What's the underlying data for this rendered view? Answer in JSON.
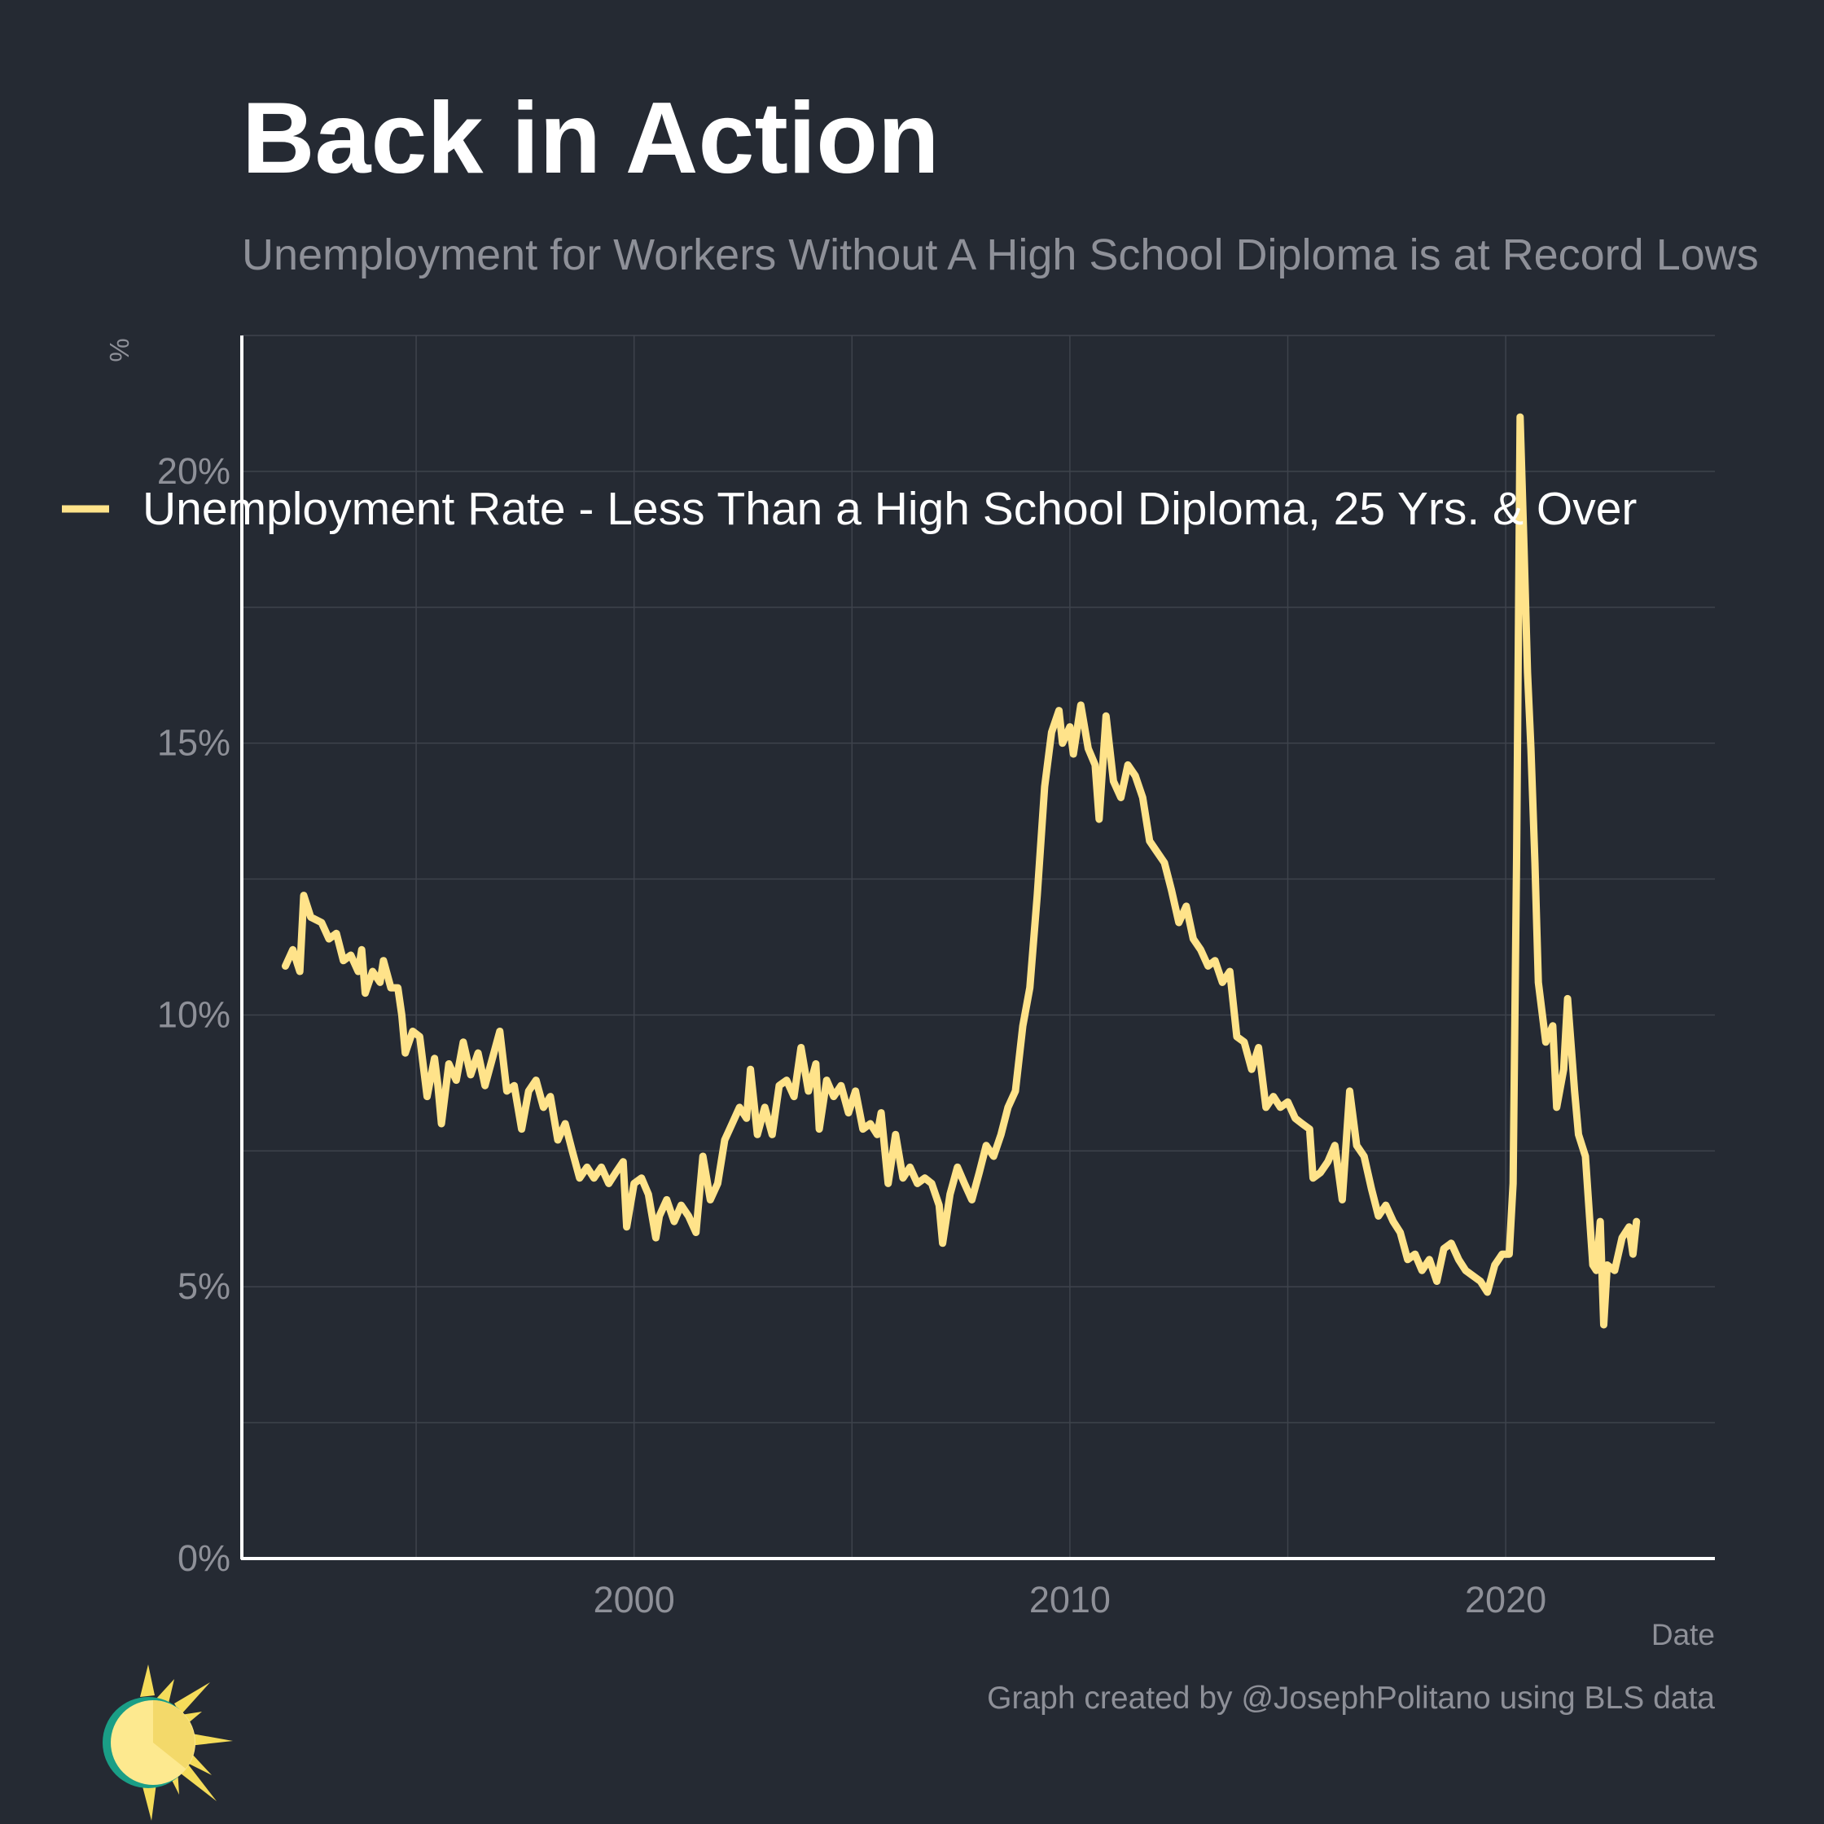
{
  "title": "Back in Action",
  "subtitle": "Unemployment for Workers Without A High School Diploma is at Record Lows",
  "caption": "Graph created by @JosephPolitano using BLS data",
  "colors": {
    "background": "#252a33",
    "series": "#ffe38a",
    "grid": "#3e434c",
    "axis": "#ffffff",
    "text_muted": "#8e9098",
    "text": "#ffffff",
    "logo_ring": "#1a9e86"
  },
  "chart_data": {
    "type": "line",
    "title": "Back in Action",
    "subtitle": "Unemployment for Workers Without A High School Diploma is at Record Lows",
    "xlabel": "Date",
    "ylabel": "%",
    "xlim": [
      1991.0,
      2024.8
    ],
    "ylim": [
      0,
      22.5
    ],
    "x_ticks": [
      2000,
      2010,
      2020
    ],
    "x_tick_labels": [
      "2000",
      "2010",
      "2020"
    ],
    "y_ticks": [
      0,
      5,
      10,
      15,
      20
    ],
    "y_tick_labels": [
      "0%",
      "5%",
      "10%",
      "15%",
      "20%"
    ],
    "grid": true,
    "legend": "top-left",
    "series": [
      {
        "name": "Unemployment Rate - Less Than a High School Diploma, 25 Yrs. & Over",
        "color": "#ffe38a",
        "points": [
          [
            1992.0,
            10.9
          ],
          [
            1992.17,
            11.2
          ],
          [
            1992.33,
            10.8
          ],
          [
            1992.42,
            12.2
          ],
          [
            1992.58,
            11.8
          ],
          [
            1992.83,
            11.7
          ],
          [
            1993.0,
            11.4
          ],
          [
            1993.17,
            11.5
          ],
          [
            1993.33,
            11.0
          ],
          [
            1993.5,
            11.1
          ],
          [
            1993.67,
            10.8
          ],
          [
            1993.75,
            11.2
          ],
          [
            1993.83,
            10.4
          ],
          [
            1994.0,
            10.8
          ],
          [
            1994.17,
            10.6
          ],
          [
            1994.25,
            11.0
          ],
          [
            1994.42,
            10.5
          ],
          [
            1994.58,
            10.5
          ],
          [
            1994.67,
            10.0
          ],
          [
            1994.75,
            9.3
          ],
          [
            1994.92,
            9.7
          ],
          [
            1995.08,
            9.6
          ],
          [
            1995.25,
            8.5
          ],
          [
            1995.42,
            9.2
          ],
          [
            1995.5,
            8.7
          ],
          [
            1995.58,
            8.0
          ],
          [
            1995.75,
            9.1
          ],
          [
            1995.92,
            8.8
          ],
          [
            1996.08,
            9.5
          ],
          [
            1996.25,
            8.9
          ],
          [
            1996.42,
            9.3
          ],
          [
            1996.58,
            8.7
          ],
          [
            1996.75,
            9.2
          ],
          [
            1996.92,
            9.7
          ],
          [
            1997.08,
            8.6
          ],
          [
            1997.25,
            8.7
          ],
          [
            1997.42,
            7.9
          ],
          [
            1997.58,
            8.6
          ],
          [
            1997.75,
            8.8
          ],
          [
            1997.92,
            8.3
          ],
          [
            1998.08,
            8.5
          ],
          [
            1998.25,
            7.7
          ],
          [
            1998.42,
            8.0
          ],
          [
            1998.58,
            7.5
          ],
          [
            1998.75,
            7.0
          ],
          [
            1998.92,
            7.2
          ],
          [
            1999.08,
            7.0
          ],
          [
            1999.25,
            7.2
          ],
          [
            1999.42,
            6.9
          ],
          [
            1999.58,
            7.1
          ],
          [
            1999.75,
            7.3
          ],
          [
            1999.83,
            6.1
          ],
          [
            2000.0,
            6.9
          ],
          [
            2000.17,
            7.0
          ],
          [
            2000.33,
            6.7
          ],
          [
            2000.5,
            5.9
          ],
          [
            2000.58,
            6.3
          ],
          [
            2000.75,
            6.6
          ],
          [
            2000.92,
            6.2
          ],
          [
            2001.08,
            6.5
          ],
          [
            2001.25,
            6.3
          ],
          [
            2001.42,
            6.0
          ],
          [
            2001.58,
            7.4
          ],
          [
            2001.75,
            6.6
          ],
          [
            2001.92,
            6.9
          ],
          [
            2002.08,
            7.7
          ],
          [
            2002.25,
            8.0
          ],
          [
            2002.42,
            8.3
          ],
          [
            2002.58,
            8.1
          ],
          [
            2002.67,
            9.0
          ],
          [
            2002.83,
            7.8
          ],
          [
            2003.0,
            8.3
          ],
          [
            2003.17,
            7.8
          ],
          [
            2003.33,
            8.7
          ],
          [
            2003.5,
            8.8
          ],
          [
            2003.67,
            8.5
          ],
          [
            2003.83,
            9.4
          ],
          [
            2004.0,
            8.6
          ],
          [
            2004.17,
            9.1
          ],
          [
            2004.25,
            7.9
          ],
          [
            2004.42,
            8.8
          ],
          [
            2004.58,
            8.5
          ],
          [
            2004.75,
            8.7
          ],
          [
            2004.92,
            8.2
          ],
          [
            2005.08,
            8.6
          ],
          [
            2005.25,
            7.9
          ],
          [
            2005.42,
            8.0
          ],
          [
            2005.58,
            7.8
          ],
          [
            2005.67,
            8.2
          ],
          [
            2005.83,
            6.9
          ],
          [
            2006.0,
            7.8
          ],
          [
            2006.17,
            7.0
          ],
          [
            2006.33,
            7.2
          ],
          [
            2006.5,
            6.9
          ],
          [
            2006.67,
            7.0
          ],
          [
            2006.83,
            6.9
          ],
          [
            2007.0,
            6.5
          ],
          [
            2007.08,
            5.8
          ],
          [
            2007.25,
            6.7
          ],
          [
            2007.42,
            7.2
          ],
          [
            2007.58,
            6.9
          ],
          [
            2007.75,
            6.6
          ],
          [
            2007.92,
            7.1
          ],
          [
            2008.08,
            7.6
          ],
          [
            2008.25,
            7.4
          ],
          [
            2008.42,
            7.8
          ],
          [
            2008.58,
            8.3
          ],
          [
            2008.75,
            8.6
          ],
          [
            2008.92,
            9.8
          ],
          [
            2009.08,
            10.5
          ],
          [
            2009.25,
            12.2
          ],
          [
            2009.42,
            14.2
          ],
          [
            2009.58,
            15.2
          ],
          [
            2009.75,
            15.6
          ],
          [
            2009.83,
            15.0
          ],
          [
            2010.0,
            15.3
          ],
          [
            2010.08,
            14.8
          ],
          [
            2010.25,
            15.7
          ],
          [
            2010.42,
            14.9
          ],
          [
            2010.58,
            14.6
          ],
          [
            2010.67,
            13.6
          ],
          [
            2010.83,
            15.5
          ],
          [
            2011.0,
            14.3
          ],
          [
            2011.17,
            14.0
          ],
          [
            2011.33,
            14.6
          ],
          [
            2011.5,
            14.4
          ],
          [
            2011.67,
            14.0
          ],
          [
            2011.83,
            13.2
          ],
          [
            2012.0,
            13.0
          ],
          [
            2012.17,
            12.8
          ],
          [
            2012.33,
            12.3
          ],
          [
            2012.5,
            11.7
          ],
          [
            2012.67,
            12.0
          ],
          [
            2012.83,
            11.4
          ],
          [
            2013.0,
            11.2
          ],
          [
            2013.17,
            10.9
          ],
          [
            2013.33,
            11.0
          ],
          [
            2013.5,
            10.6
          ],
          [
            2013.67,
            10.8
          ],
          [
            2013.83,
            9.6
          ],
          [
            2014.0,
            9.5
          ],
          [
            2014.17,
            9.0
          ],
          [
            2014.33,
            9.4
          ],
          [
            2014.5,
            8.3
          ],
          [
            2014.67,
            8.5
          ],
          [
            2014.83,
            8.3
          ],
          [
            2015.0,
            8.4
          ],
          [
            2015.17,
            8.1
          ],
          [
            2015.33,
            8.0
          ],
          [
            2015.5,
            7.9
          ],
          [
            2015.58,
            7.0
          ],
          [
            2015.75,
            7.1
          ],
          [
            2015.92,
            7.3
          ],
          [
            2016.08,
            7.6
          ],
          [
            2016.25,
            6.6
          ],
          [
            2016.42,
            8.6
          ],
          [
            2016.58,
            7.6
          ],
          [
            2016.75,
            7.4
          ],
          [
            2016.92,
            6.8
          ],
          [
            2017.08,
            6.3
          ],
          [
            2017.25,
            6.5
          ],
          [
            2017.42,
            6.2
          ],
          [
            2017.58,
            6.0
          ],
          [
            2017.75,
            5.5
          ],
          [
            2017.92,
            5.6
          ],
          [
            2018.08,
            5.3
          ],
          [
            2018.25,
            5.5
          ],
          [
            2018.42,
            5.1
          ],
          [
            2018.58,
            5.7
          ],
          [
            2018.75,
            5.8
          ],
          [
            2018.92,
            5.5
          ],
          [
            2019.08,
            5.3
          ],
          [
            2019.25,
            5.2
          ],
          [
            2019.42,
            5.1
          ],
          [
            2019.58,
            4.9
          ],
          [
            2019.75,
            5.4
          ],
          [
            2019.92,
            5.6
          ],
          [
            2020.08,
            5.6
          ],
          [
            2020.17,
            6.9
          ],
          [
            2020.25,
            12.9
          ],
          [
            2020.33,
            21.0
          ],
          [
            2020.42,
            18.6
          ],
          [
            2020.5,
            16.3
          ],
          [
            2020.58,
            14.9
          ],
          [
            2020.67,
            12.8
          ],
          [
            2020.75,
            10.6
          ],
          [
            2020.92,
            9.5
          ],
          [
            2021.08,
            9.8
          ],
          [
            2021.17,
            8.3
          ],
          [
            2021.33,
            9.0
          ],
          [
            2021.42,
            10.3
          ],
          [
            2021.58,
            8.6
          ],
          [
            2021.67,
            7.8
          ],
          [
            2021.83,
            7.4
          ],
          [
            2022.0,
            5.4
          ],
          [
            2022.08,
            5.3
          ],
          [
            2022.17,
            6.2
          ],
          [
            2022.25,
            4.3
          ],
          [
            2022.33,
            5.4
          ],
          [
            2022.5,
            5.3
          ],
          [
            2022.67,
            5.9
          ],
          [
            2022.83,
            6.1
          ],
          [
            2022.92,
            5.6
          ],
          [
            2023.0,
            6.2
          ]
        ]
      }
    ]
  }
}
